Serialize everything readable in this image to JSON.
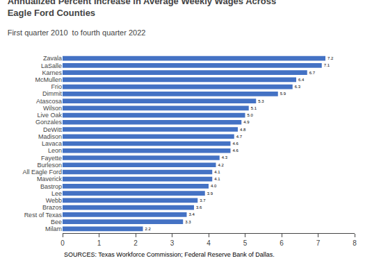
{
  "chart_data": {
    "type": "bar",
    "orientation": "horizontal",
    "title": "Annualized Percent Increase in Average Weekly Wages Across Eagle Ford Counties",
    "subtitle": "First quarter 2010  to fourth quarter 2022",
    "annotations": [
      "SOURCES: Texas Workforce Commission; Federal Reserve Bank of Dallas."
    ],
    "categories": [
      "Milam",
      "Bee",
      "Rest of Texas",
      "Brazos",
      "Webb",
      "Lee",
      "Bastrop",
      "Maverick",
      "All Eagle Ford",
      "Burleson",
      "Fayette",
      "Leon",
      "Lavaca",
      "Madison",
      "DeWitt",
      "Gonzales",
      "Live Oak",
      "Wilson",
      "Atascosa",
      "Dimmit",
      "Frio",
      "McMullen",
      "Karnes",
      "LaSalle",
      "Zavala"
    ],
    "values": [
      2.2,
      3.3,
      3.4,
      3.6,
      3.7,
      3.9,
      4.0,
      4.1,
      4.1,
      4.2,
      4.3,
      4.6,
      4.6,
      4.7,
      4.8,
      4.9,
      5.0,
      5.1,
      5.3,
      5.9,
      6.3,
      6.4,
      6.7,
      7.1,
      7.2
    ],
    "value_labels": [
      "2.2",
      "3.3",
      "3.4",
      "3.6",
      "3.7",
      "3.9",
      "4.0",
      "4.1",
      "4.1",
      "4.2",
      "4.3",
      "4.6",
      "4.6",
      "4.7",
      "4.8",
      "4.9",
      "5.0",
      "5.1",
      "5.3",
      "5.9",
      "6.3",
      "6.4",
      "6.7",
      "7.1",
      "7.2"
    ],
    "data_labels": true,
    "color": "#4472C4",
    "xlim": [
      0,
      8
    ],
    "xticks": [
      0,
      1,
      2,
      3,
      4,
      5,
      6,
      7,
      8
    ],
    "grid": false
  }
}
